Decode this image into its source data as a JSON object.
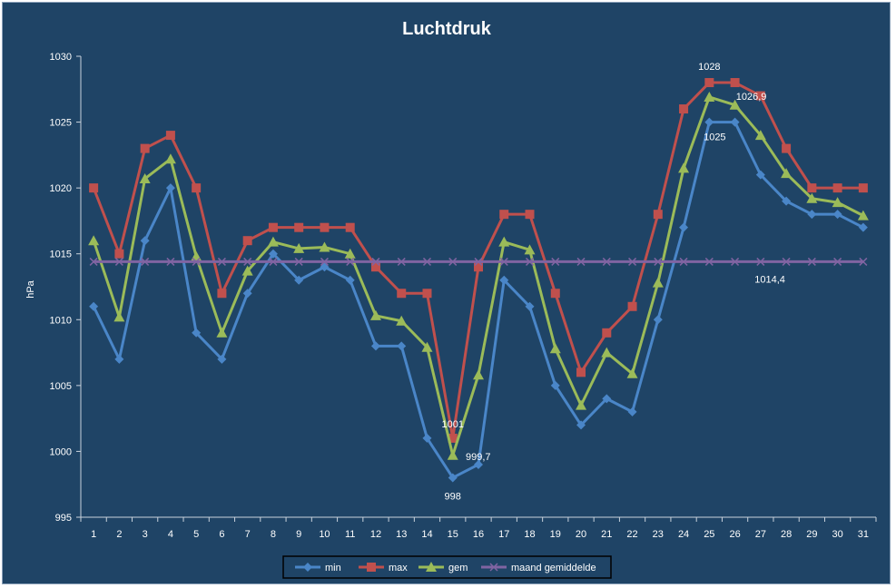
{
  "chart_data": {
    "type": "line",
    "title": "Luchtdruk",
    "xlabel": "",
    "ylabel": "hPa",
    "ylim": [
      995,
      1030
    ],
    "ytick_step": 5,
    "grid": false,
    "legend_position": "bottom",
    "x": [
      1,
      2,
      3,
      4,
      5,
      6,
      7,
      8,
      9,
      10,
      11,
      12,
      13,
      14,
      15,
      16,
      17,
      18,
      19,
      20,
      21,
      22,
      23,
      24,
      25,
      26,
      27,
      28,
      29,
      30,
      31
    ],
    "series": [
      {
        "name": "min",
        "color": "#4a86c8",
        "marker": "diamond",
        "values": [
          1011,
          1007,
          1016,
          1020,
          1009,
          1007,
          1012,
          1015,
          1013,
          1014,
          1013,
          1008,
          1008,
          1001,
          998,
          999,
          1013,
          1011,
          1005,
          1002,
          1004,
          1003,
          1010,
          1017,
          1025,
          1025,
          1021,
          1019,
          1018,
          1018,
          1017
        ]
      },
      {
        "name": "max",
        "color": "#c0504d",
        "marker": "square",
        "values": [
          1020,
          1015,
          1023,
          1024,
          1020,
          1012,
          1016,
          1017,
          1017,
          1017,
          1017,
          1014,
          1012,
          1012,
          1001,
          1014,
          1018,
          1018,
          1012,
          1006,
          1009,
          1011,
          1018,
          1026,
          1028,
          1028,
          1027,
          1023,
          1020,
          1020,
          1020
        ]
      },
      {
        "name": "gem",
        "color": "#9bbb59",
        "marker": "triangle",
        "values": [
          1016,
          1010.2,
          1020.7,
          1022.2,
          1014.8,
          1009,
          1013.7,
          1015.9,
          1015.4,
          1015.5,
          1015,
          1010.3,
          1009.9,
          1007.9,
          999.7,
          1005.8,
          1015.9,
          1015.3,
          1007.8,
          1003.5,
          1007.5,
          1005.9,
          1012.8,
          1021.5,
          1026.9,
          1026.3,
          1024,
          1021.1,
          1019.2,
          1018.9,
          1017.9
        ]
      },
      {
        "name": "maand gemiddelde",
        "color": "#8064a2",
        "marker": "x",
        "values": [
          1014.4,
          1014.4,
          1014.4,
          1014.4,
          1014.4,
          1014.4,
          1014.4,
          1014.4,
          1014.4,
          1014.4,
          1014.4,
          1014.4,
          1014.4,
          1014.4,
          1014.4,
          1014.4,
          1014.4,
          1014.4,
          1014.4,
          1014.4,
          1014.4,
          1014.4,
          1014.4,
          1014.4,
          1014.4,
          1014.4,
          1014.4,
          1014.4,
          1014.4,
          1014.4,
          1014.4
        ]
      }
    ],
    "annotations": [
      {
        "text": "1028",
        "x": 25,
        "y": 1028,
        "series": "max"
      },
      {
        "text": "1026,9",
        "x": 26,
        "y": 1026.9,
        "series": "gem"
      },
      {
        "text": "1025",
        "x": 25,
        "y": 1025,
        "series": "min"
      },
      {
        "text": "1001",
        "x": 15,
        "y": 1001,
        "series": "max"
      },
      {
        "text": "999,7",
        "x": 15,
        "y": 999.7,
        "series": "gem"
      },
      {
        "text": "998",
        "x": 15,
        "y": 998,
        "series": "min"
      },
      {
        "text": "1014,4",
        "x": 28,
        "y": 1014.4,
        "series": "maand gemiddelde"
      }
    ]
  }
}
